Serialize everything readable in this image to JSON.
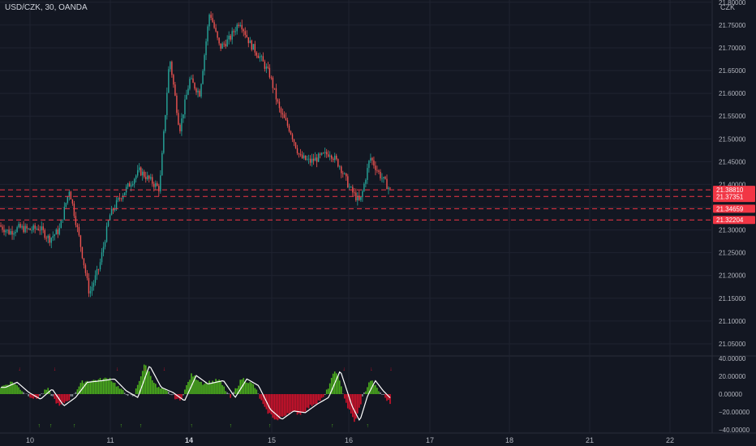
{
  "header": {
    "title": "USD/CZK, 30, OANDA",
    "currency": "CZK"
  },
  "colors": {
    "bg": "#131722",
    "grid": "#1f2330",
    "up": "#26a69a",
    "down": "#ef5350",
    "hline": "#f23645",
    "axis_text": "#b2b5be",
    "hist_pos": "#4caf1d",
    "hist_neg": "#d0122b",
    "hist_neutral": "#8a8e99",
    "osc_line": "#ffffff"
  },
  "chart_data": [
    {
      "type": "candlestick",
      "title": "USD/CZK, 30, OANDA",
      "x_ticks": [
        "10",
        "11",
        "14",
        "15",
        "16",
        "17",
        "18",
        "21",
        "22"
      ],
      "x_ticks_bold": [
        "14"
      ],
      "y_ticks": [
        "21.80000",
        "21.75000",
        "21.70000",
        "21.65000",
        "21.60000",
        "21.55000",
        "21.50000",
        "21.45000",
        "21.40000",
        "21.35000",
        "21.30000",
        "21.25000",
        "21.20000",
        "21.15000",
        "21.10000",
        "21.05000"
      ],
      "ylim": [
        21.025,
        21.805
      ],
      "price_path": [
        [
          "10",
          21.31
        ],
        [
          "",
          21.295
        ],
        [
          "",
          21.305
        ],
        [
          "",
          21.3
        ],
        [
          "",
          21.305
        ],
        [
          "",
          21.28
        ],
        [
          "",
          21.3
        ],
        [
          "",
          21.39
        ],
        [
          "",
          21.28
        ],
        [
          "",
          21.16
        ],
        [
          "",
          21.22
        ],
        [
          "11",
          21.33
        ],
        [
          "",
          21.37
        ],
        [
          "",
          21.4
        ],
        [
          "",
          21.43
        ],
        [
          "",
          21.41
        ],
        [
          "",
          21.39
        ],
        [
          "",
          21.68
        ],
        [
          "",
          21.52
        ],
        [
          "",
          21.63
        ],
        [
          "",
          21.6
        ],
        [
          "",
          21.78
        ],
        [
          "14",
          21.7
        ],
        [
          "",
          21.72
        ],
        [
          "",
          21.76
        ],
        [
          "",
          21.71
        ],
        [
          "",
          21.68
        ],
        [
          "",
          21.64
        ],
        [
          "",
          21.56
        ],
        [
          "",
          21.52
        ],
        [
          "15",
          21.46
        ],
        [
          "",
          21.45
        ],
        [
          "",
          21.46
        ],
        [
          "",
          21.47
        ],
        [
          "",
          21.44
        ],
        [
          "",
          21.39
        ],
        [
          "16",
          21.36
        ],
        [
          "",
          21.46
        ],
        [
          "",
          21.42
        ],
        [
          "",
          21.388
        ]
      ],
      "horizontal_levels": [
        {
          "value": 21.3881,
          "label": "21.38810",
          "sub": "25:14"
        },
        {
          "value": 21.37351,
          "label": "21.37351"
        },
        {
          "value": 21.34659,
          "label": "21.34659"
        },
        {
          "value": 21.32204,
          "label": "21.32204"
        }
      ]
    },
    {
      "type": "histogram",
      "name": "oscillator",
      "y_ticks": [
        "40.00000",
        "20.00000",
        "0.00000",
        "−20.00000",
        "−40.00000"
      ],
      "ylim": [
        -42,
        42
      ],
      "shape_path": [
        [
          0,
          8
        ],
        [
          0.03,
          14
        ],
        [
          0.06,
          2
        ],
        [
          0.09,
          -6
        ],
        [
          0.12,
          6
        ],
        [
          0.15,
          -14
        ],
        [
          0.18,
          -4
        ],
        [
          0.21,
          14
        ],
        [
          0.25,
          16
        ],
        [
          0.28,
          18
        ],
        [
          0.31,
          4
        ],
        [
          0.34,
          -4
        ],
        [
          0.37,
          34
        ],
        [
          0.4,
          8
        ],
        [
          0.43,
          2
        ],
        [
          0.46,
          -8
        ],
        [
          0.49,
          22
        ],
        [
          0.52,
          12
        ],
        [
          0.56,
          16
        ],
        [
          0.59,
          -4
        ],
        [
          0.62,
          18
        ],
        [
          0.65,
          10
        ],
        [
          0.68,
          -18
        ],
        [
          0.71,
          -30
        ],
        [
          0.74,
          -20
        ],
        [
          0.77,
          -22
        ],
        [
          0.8,
          -12
        ],
        [
          0.83,
          -4
        ],
        [
          0.86,
          28
        ],
        [
          0.89,
          -14
        ],
        [
          0.91,
          -32
        ],
        [
          0.93,
          -2
        ],
        [
          0.95,
          16
        ],
        [
          0.97,
          4
        ],
        [
          1.0,
          -10
        ]
      ],
      "signal_marks_top": [
        0.05,
        0.14,
        0.3,
        0.37,
        0.42,
        0.88,
        0.95,
        1.0
      ],
      "signal_marks_bottom": [
        0.1,
        0.13,
        0.19,
        0.31,
        0.36,
        0.49,
        0.59,
        0.69,
        0.85,
        0.94
      ]
    }
  ]
}
